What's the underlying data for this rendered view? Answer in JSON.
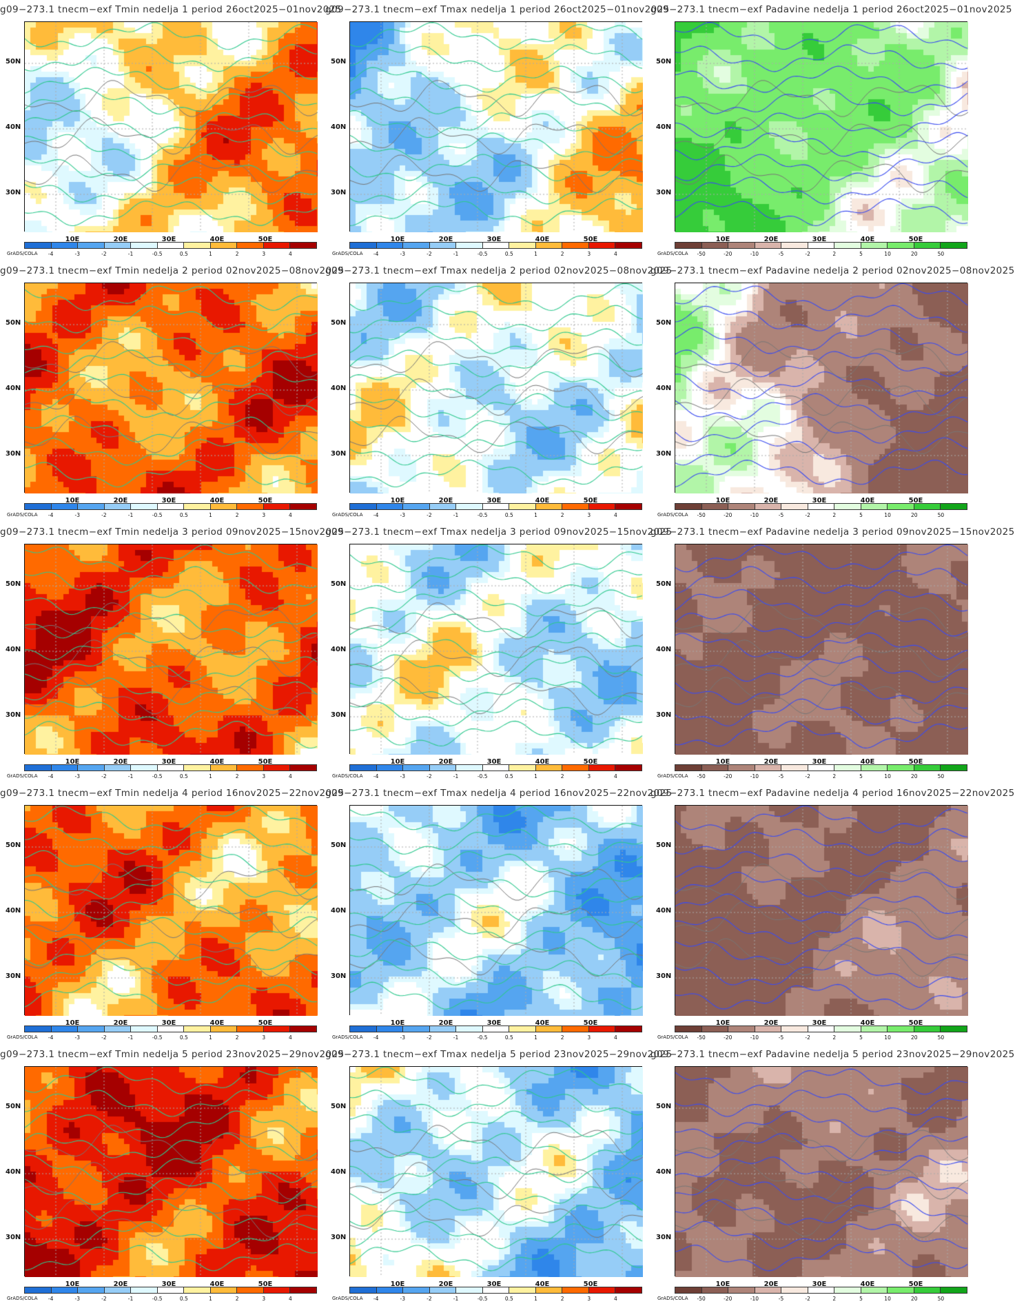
{
  "chart_data": {
    "type": "heatmap",
    "lat_ticks": [
      "50N",
      "40N",
      "30N"
    ],
    "lon_ticks": [
      "10E",
      "20E",
      "30E",
      "40E",
      "50E"
    ],
    "branding": "GrADS/COLA",
    "scales": {
      "temp": {
        "labels": [
          "-4",
          "-3",
          "-2",
          "-1",
          "-0.5",
          "0.5",
          "1",
          "2",
          "3",
          "4"
        ],
        "colors": [
          "#1f6fd6",
          "#2f86ea",
          "#55a5f0",
          "#96cdf7",
          "#dff9ff",
          "#ffffff",
          "#fff2a0",
          "#ffbb3a",
          "#ff6a00",
          "#e81800",
          "#a50000"
        ],
        "contour_color": "#2ec98e"
      },
      "precip": {
        "labels": [
          "-50",
          "-20",
          "-10",
          "-5",
          "-2",
          "2",
          "5",
          "10",
          "20",
          "50"
        ],
        "colors": [
          "#6e3f36",
          "#8c5f55",
          "#ae8479",
          "#d9b4ab",
          "#f8e9df",
          "#ffffff",
          "#e3fde0",
          "#b2f5a8",
          "#78ec6c",
          "#36cc3a",
          "#12a51a"
        ],
        "contour_color": "#3b4cf0"
      }
    },
    "panels": [
      {
        "title": "g09−273.1  tnecm−exf  Tmin  nedelja 1  period  26oct2025−01nov2025",
        "scale": "temp",
        "bias": 1.0,
        "east_trend": 3.0
      },
      {
        "title": "g09−273.1  tnecm−exf  Tmax  nedelja 1  period  26oct2025−01nov2025",
        "scale": "temp",
        "bias": -0.3,
        "east_trend": 3.0
      },
      {
        "title": "g09−273.1  tnecm−exf  Padavine  nedelja 1  period  26oct2025−01nov2025",
        "scale": "precip",
        "bias": 2.0,
        "east_trend": -3.0
      },
      {
        "title": "g09−273.1  tnecm−exf  Tmin  nedelja 2  period  02nov2025−08nov2025",
        "scale": "temp",
        "bias": 2.5,
        "east_trend": 0.0
      },
      {
        "title": "g09−273.1  tnecm−exf  Tmax  nedelja 2  period  02nov2025−08nov2025",
        "scale": "temp",
        "bias": -0.4,
        "east_trend": 0.0
      },
      {
        "title": "g09−273.1  tnecm−exf  Padavine  nedelja 2  period  02nov2025−08nov2025",
        "scale": "precip",
        "bias": -2.0,
        "east_trend": -6.0
      },
      {
        "title": "g09−273.1  tnecm−exf  Tmin  nedelja 3  period  09nov2025−15nov2025",
        "scale": "temp",
        "bias": 2.7,
        "east_trend": -0.5
      },
      {
        "title": "g09−273.1  tnecm−exf  Tmax  nedelja 3  period  09nov2025−15nov2025",
        "scale": "temp",
        "bias": -0.5,
        "east_trend": -0.5
      },
      {
        "title": "g09−273.1  tnecm−exf  Padavine  nedelja 3  period  09nov2025−15nov2025",
        "scale": "precip",
        "bias": -4.0,
        "east_trend": 0.0
      },
      {
        "title": "g09−273.1  tnecm−exf  Tmin  nedelja 4  period  16nov2025−22nov2025",
        "scale": "temp",
        "bias": 2.2,
        "east_trend": -0.5
      },
      {
        "title": "g09−273.1  tnecm−exf  Tmax  nedelja 4  period  16nov2025−22nov2025",
        "scale": "temp",
        "bias": -1.4,
        "east_trend": -1.0
      },
      {
        "title": "g09−273.1  tnecm−exf  Padavine  nedelja 4  period  16nov2025−22nov2025",
        "scale": "precip",
        "bias": -3.5,
        "east_trend": 2.0
      },
      {
        "title": "g09−273.1  tnecm−exf  Tmin  nedelja 5  period  23nov2025−29nov2025",
        "scale": "temp",
        "bias": 3.2,
        "east_trend": -0.5
      },
      {
        "title": "g09−273.1  tnecm−exf  Tmax  nedelja 5  period  23nov2025−29nov2025",
        "scale": "temp",
        "bias": -1.0,
        "east_trend": -2.0
      },
      {
        "title": "g09−273.1  tnecm−exf  Padavine  nedelja 5  period  23nov2025−29nov2025",
        "scale": "precip",
        "bias": -3.0,
        "east_trend": 1.0
      }
    ]
  }
}
